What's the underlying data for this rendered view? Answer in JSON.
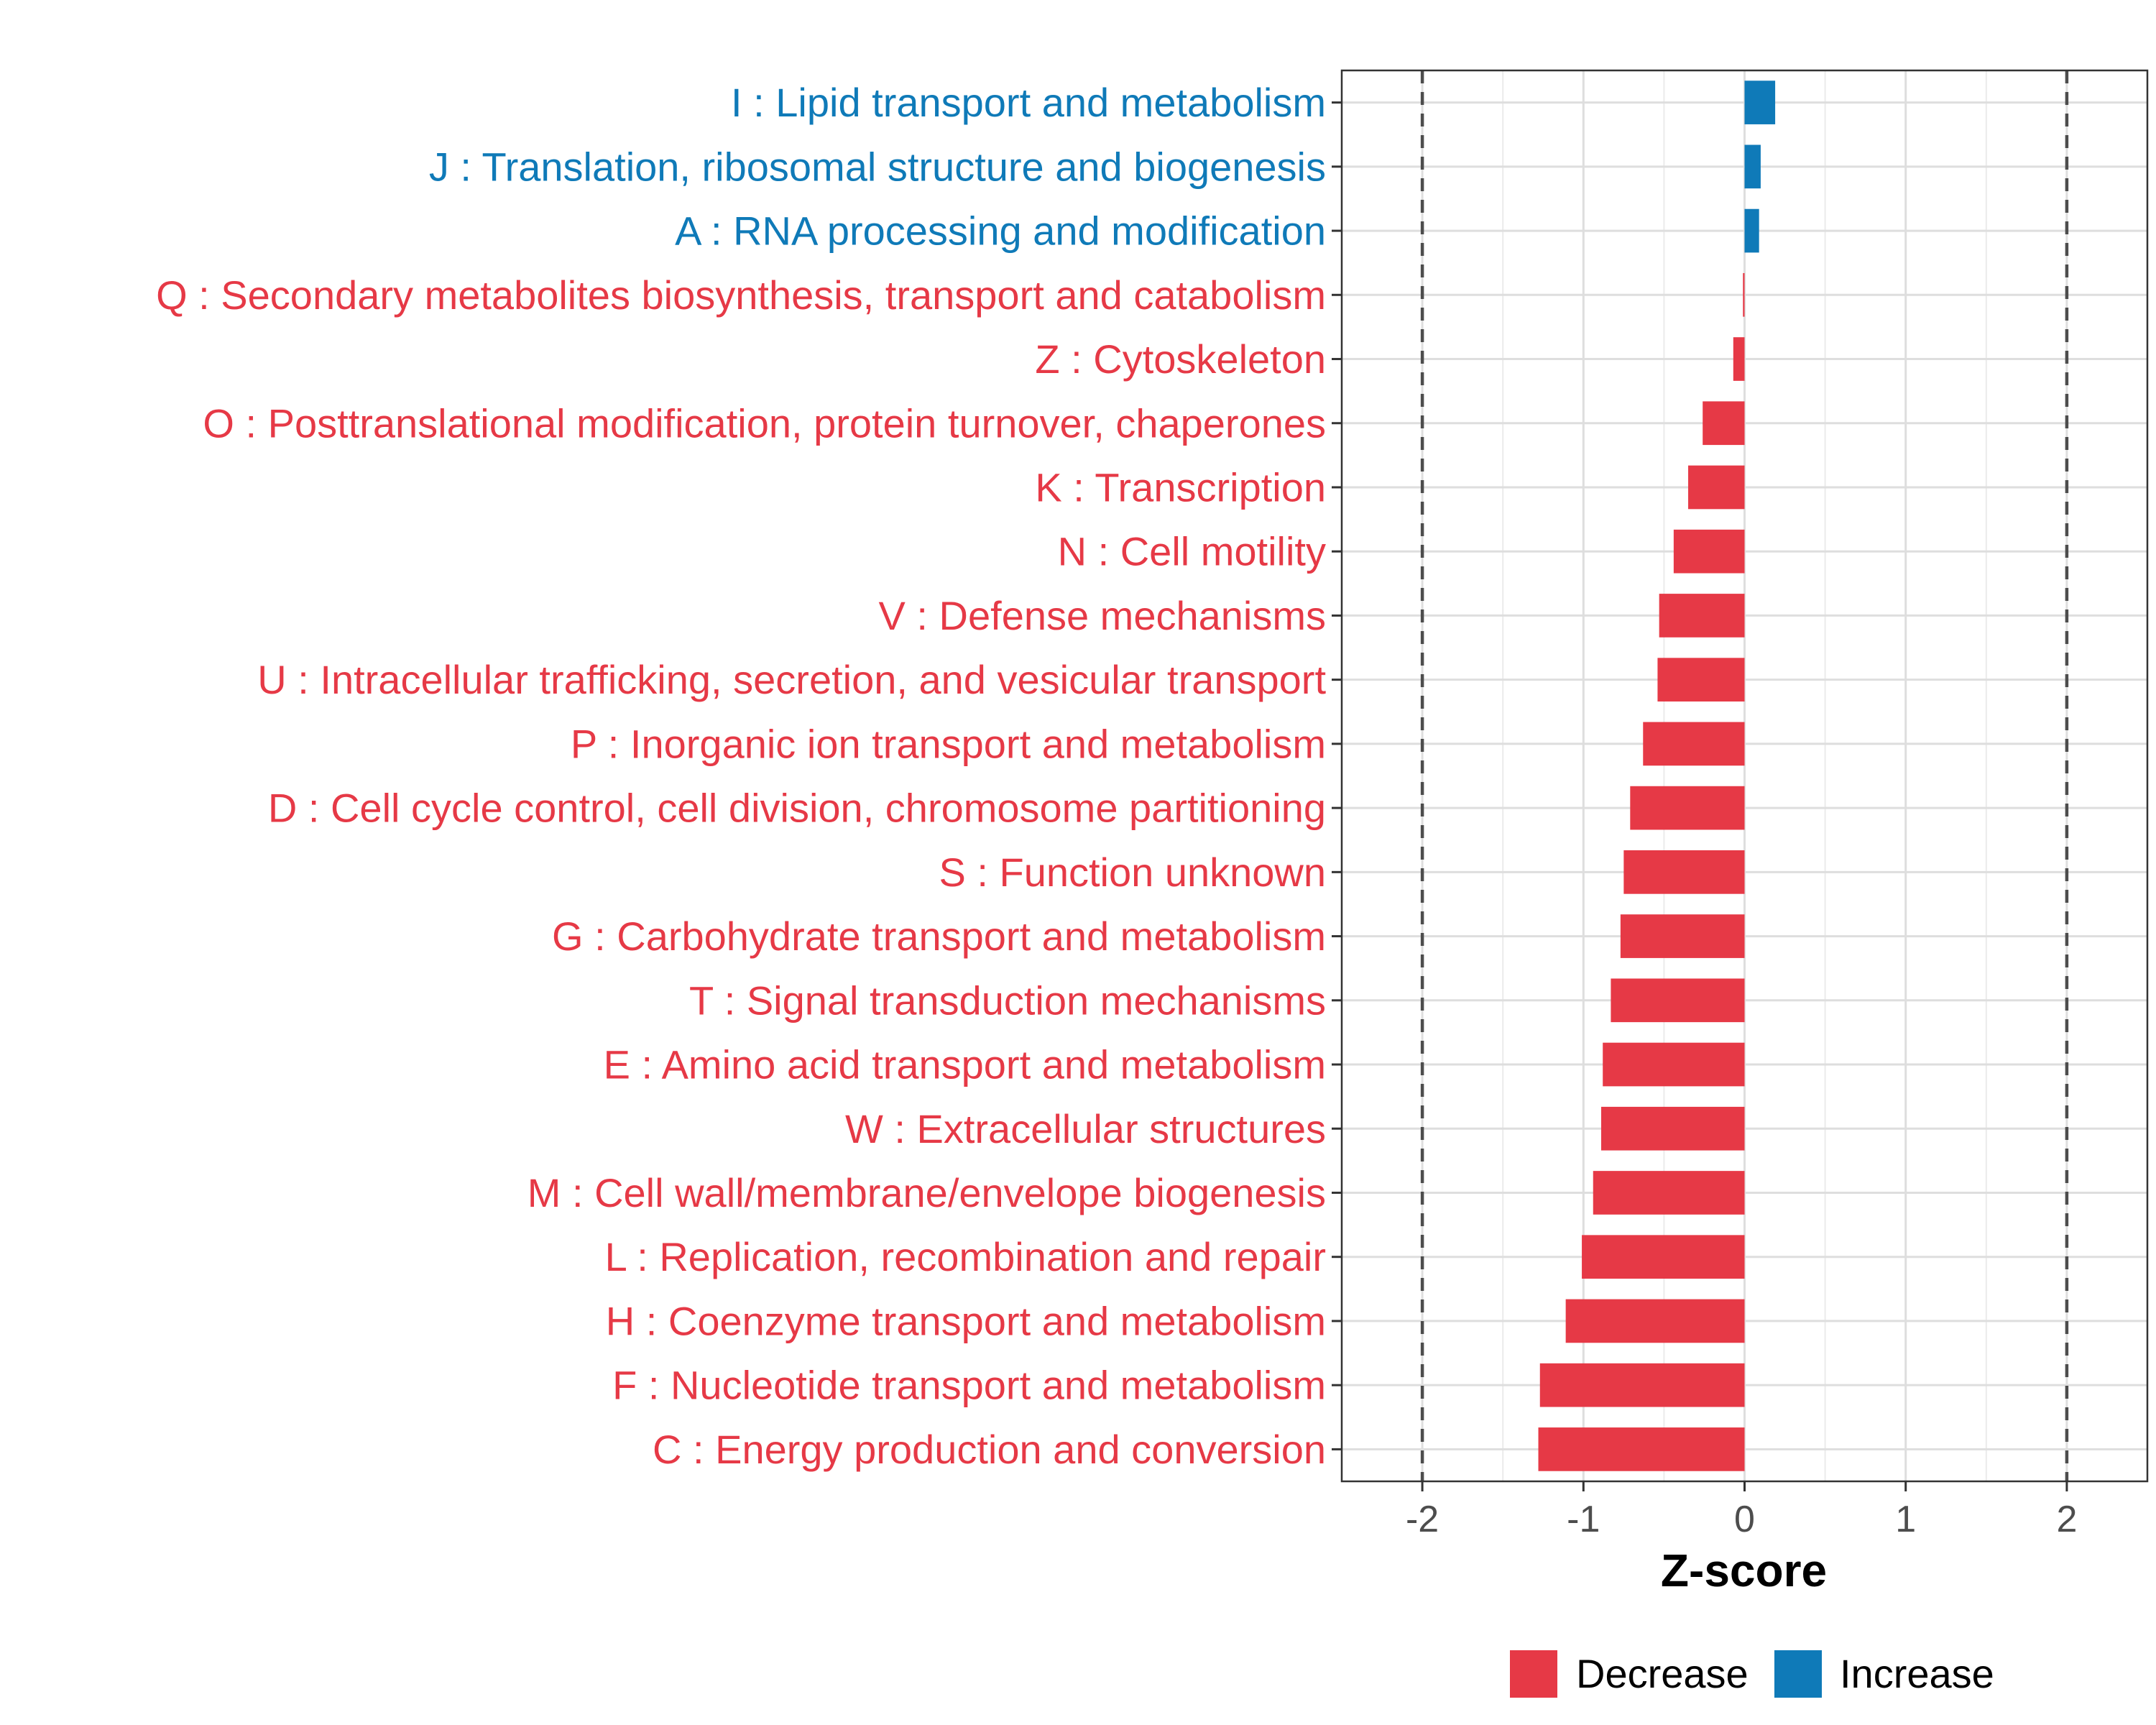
{
  "chart_data": {
    "type": "bar",
    "orientation": "horizontal",
    "xlabel": "Z-score",
    "ylabel": "",
    "xlim": [
      -2.5,
      2.5
    ],
    "xticks": [
      -2,
      -1,
      0,
      1,
      2
    ],
    "xtick_labels": [
      "-2",
      "-1",
      "0",
      "1",
      "2"
    ],
    "reference_lines": [
      -2,
      2
    ],
    "grid": true,
    "colors": {
      "Decrease": "#e63946",
      "Increase": "#0f7ab8"
    },
    "categories": [
      "I : Lipid transport and metabolism",
      "J : Translation, ribosomal structure and biogenesis",
      "A : RNA processing and modification",
      "Q : Secondary metabolites biosynthesis, transport and catabolism",
      "Z : Cytoskeleton",
      "O : Posttranslational modification, protein turnover, chaperones",
      "K : Transcription",
      "N : Cell motility",
      "V : Defense mechanisms",
      "U : Intracellular trafficking, secretion, and vesicular transport",
      "P : Inorganic ion transport and metabolism",
      "D : Cell cycle control, cell division, chromosome partitioning",
      "S : Function unknown",
      "G : Carbohydrate transport and metabolism",
      "T : Signal transduction mechanisms",
      "E : Amino acid transport and metabolism",
      "W : Extracellular structures",
      "M : Cell wall/membrane/envelope biogenesis",
      "L : Replication, recombination and repair",
      "H : Coenzyme transport and metabolism",
      "F : Nucleotide transport and metabolism",
      "C : Energy production and conversion"
    ],
    "values": [
      0.19,
      0.1,
      0.09,
      -0.01,
      -0.07,
      -0.26,
      -0.35,
      -0.44,
      -0.53,
      -0.54,
      -0.63,
      -0.71,
      -0.75,
      -0.77,
      -0.83,
      -0.88,
      -0.89,
      -0.94,
      -1.01,
      -1.11,
      -1.27,
      -1.28
    ],
    "groups": [
      "Increase",
      "Increase",
      "Increase",
      "Decrease",
      "Decrease",
      "Decrease",
      "Decrease",
      "Decrease",
      "Decrease",
      "Decrease",
      "Decrease",
      "Decrease",
      "Decrease",
      "Decrease",
      "Decrease",
      "Decrease",
      "Decrease",
      "Decrease",
      "Decrease",
      "Decrease",
      "Decrease",
      "Decrease"
    ],
    "legend": {
      "placement": "bottom",
      "entries": [
        "Decrease",
        "Increase"
      ]
    }
  }
}
